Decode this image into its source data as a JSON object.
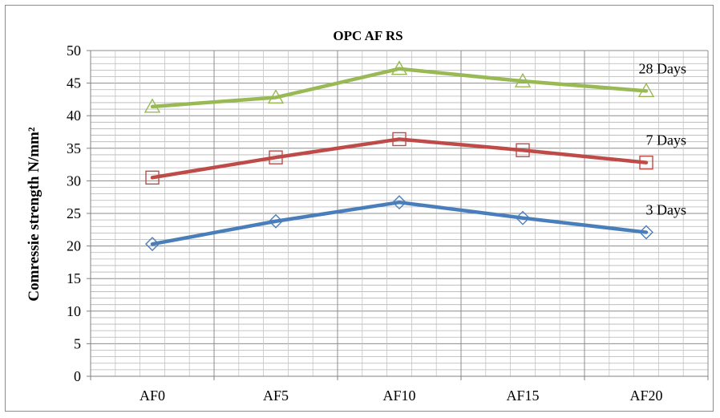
{
  "chart_data": {
    "type": "line",
    "title": "OPC AF RS",
    "xlabel": "",
    "ylabel": "Comressie strength N/mm²",
    "categories": [
      "AF0",
      "AF5",
      "AF10",
      "AF15",
      "AF20"
    ],
    "ylim": [
      0,
      50
    ],
    "y_ticks": [
      0,
      5,
      10,
      15,
      20,
      25,
      30,
      35,
      40,
      45,
      50
    ],
    "grid": true,
    "series": [
      {
        "name": "3 Days",
        "values": [
          20.3,
          23.8,
          26.7,
          24.3,
          22.1
        ],
        "color": "#4a7ebb",
        "marker": "diamond"
      },
      {
        "name": "7 Days",
        "values": [
          30.5,
          33.6,
          36.4,
          34.7,
          32.8
        ],
        "color": "#be4b48",
        "marker": "square"
      },
      {
        "name": "28 Days",
        "values": [
          41.4,
          42.8,
          47.2,
          45.3,
          43.8
        ],
        "color": "#98b954",
        "marker": "triangle"
      }
    ]
  }
}
